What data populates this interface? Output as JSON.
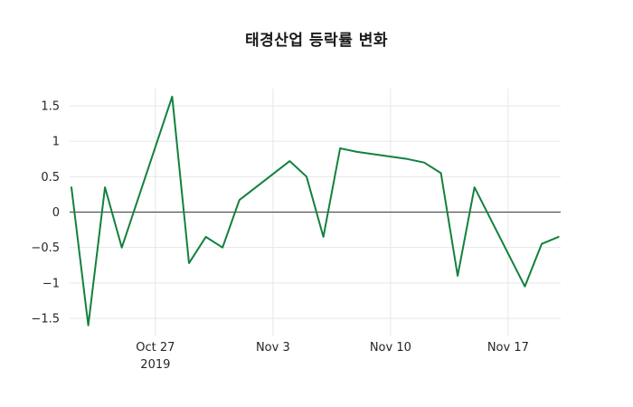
{
  "chart_data": {
    "type": "line",
    "title": "태경산업 등락률 변화",
    "xlabel": "",
    "ylabel": "",
    "legend": "none",
    "grid": "faint",
    "line_color": "#12813d",
    "zero_line_color": "#3c3c3c",
    "grid_color": "#e7e7e7",
    "ylim": [
      -1.75,
      1.75
    ],
    "yticks": [
      {
        "value": 1.5,
        "label": "1.5"
      },
      {
        "value": 1,
        "label": "1"
      },
      {
        "value": 0.5,
        "label": "0.5"
      },
      {
        "value": 0,
        "label": "0"
      },
      {
        "value": -0.5,
        "label": "−0.5"
      },
      {
        "value": -1,
        "label": "−1"
      },
      {
        "value": -1.5,
        "label": "−1.5"
      }
    ],
    "xticks": [
      {
        "date": "2019-10-27",
        "label": "Oct 27",
        "sublabel": "2019"
      },
      {
        "date": "2019-11-03",
        "label": "Nov 3",
        "sublabel": ""
      },
      {
        "date": "2019-11-10",
        "label": "Nov 10",
        "sublabel": ""
      },
      {
        "date": "2019-11-17",
        "label": "Nov 17",
        "sublabel": ""
      }
    ],
    "series": [
      {
        "name": "등락률",
        "dates": [
          "2019-10-22",
          "2019-10-23",
          "2019-10-24",
          "2019-10-25",
          "2019-10-28",
          "2019-10-29",
          "2019-10-30",
          "2019-10-31",
          "2019-11-01",
          "2019-11-04",
          "2019-11-05",
          "2019-11-06",
          "2019-11-07",
          "2019-11-08",
          "2019-11-11",
          "2019-11-12",
          "2019-11-13",
          "2019-11-14",
          "2019-11-15",
          "2019-11-18",
          "2019-11-19",
          "2019-11-20"
        ],
        "values": [
          0.35,
          -1.6,
          0.35,
          -0.5,
          1.63,
          -0.72,
          -0.35,
          -0.5,
          0.17,
          0.72,
          0.5,
          -0.35,
          0.9,
          0.85,
          0.75,
          0.7,
          0.55,
          -0.9,
          0.35,
          -1.05,
          -0.45,
          -0.35
        ]
      }
    ]
  }
}
